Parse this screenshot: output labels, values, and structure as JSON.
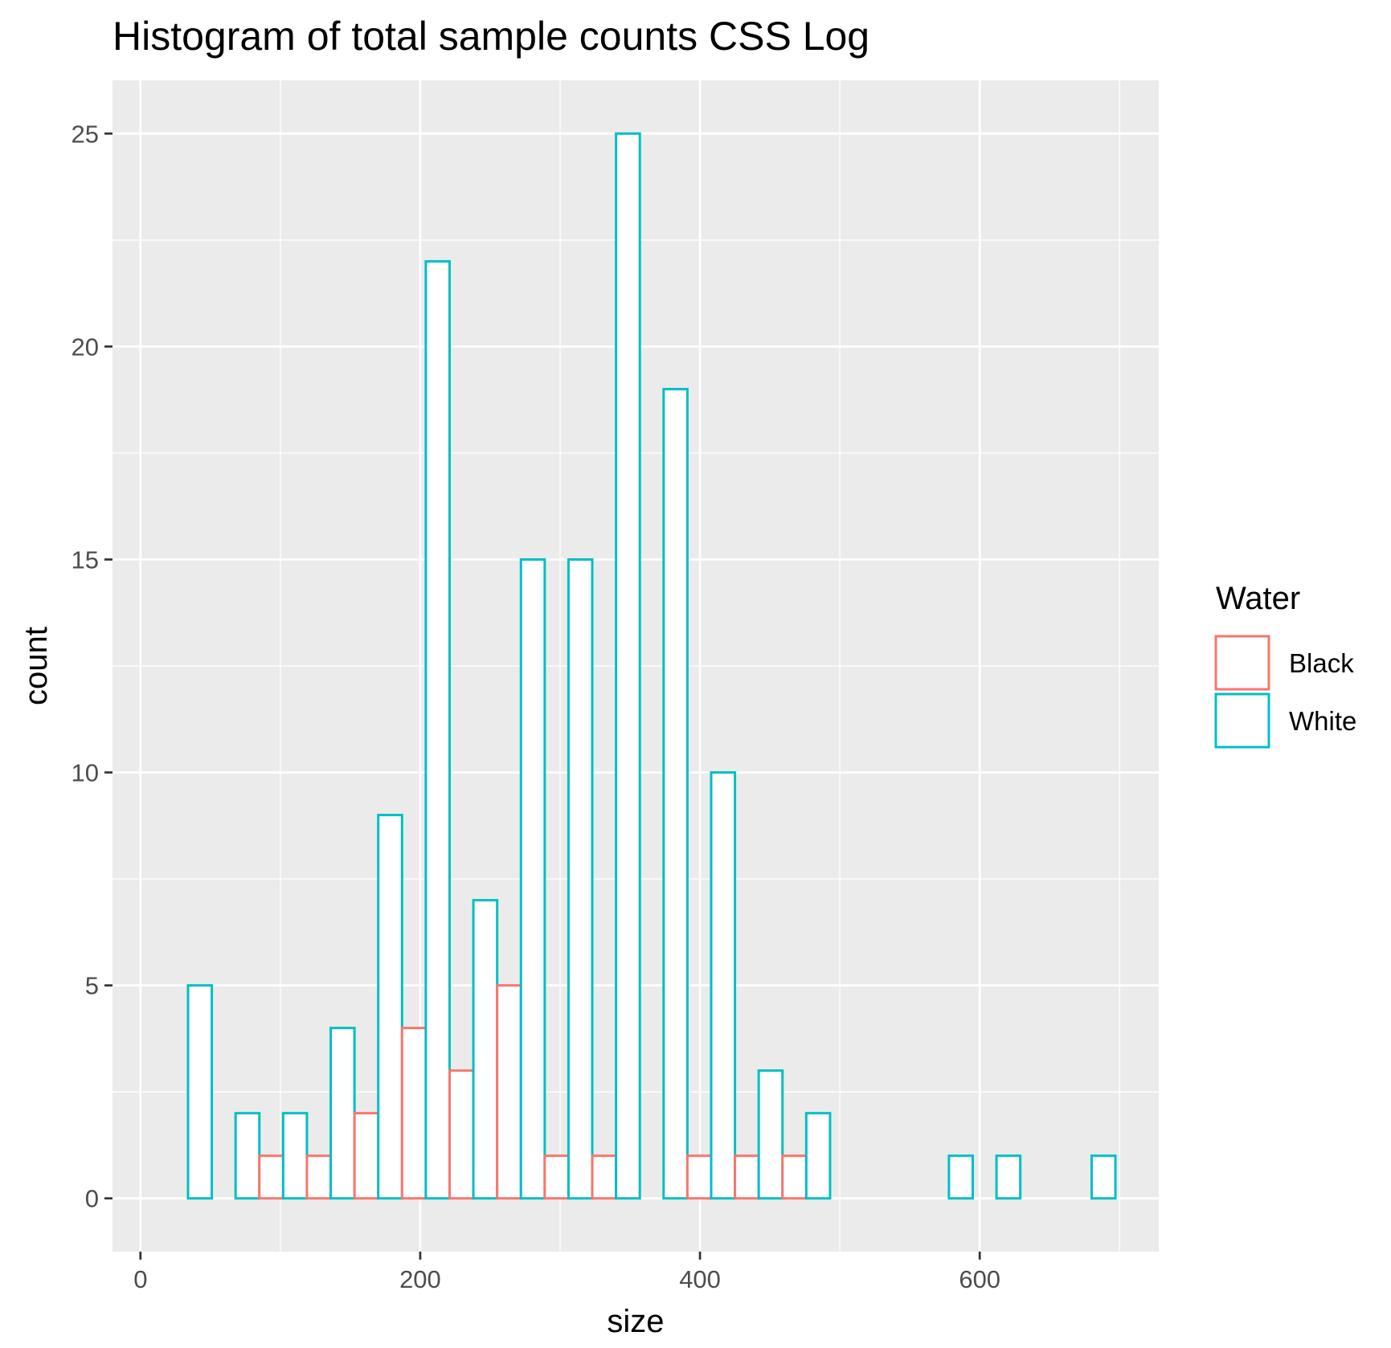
{
  "chart_data": {
    "type": "bar",
    "title": "Histogram of total sample counts CSS Log",
    "xlabel": "size",
    "ylabel": "count",
    "xlim": [
      -20,
      728
    ],
    "ylim": [
      -1.25,
      26.25
    ],
    "x_ticks": [
      0,
      200,
      400,
      600
    ],
    "x_minor_ticks": [
      100,
      300,
      500,
      700
    ],
    "y_ticks": [
      0,
      5,
      10,
      15,
      20,
      25
    ],
    "y_minor_ticks": [
      2.5,
      7.5,
      12.5,
      17.5,
      22.5
    ],
    "bin_width": 34,
    "position": "dodge",
    "grid": true,
    "legend": {
      "title": "Water",
      "placement": "right",
      "entries": [
        "Black",
        "White"
      ]
    },
    "x": [
      34,
      68,
      102,
      136,
      170,
      204,
      238,
      272,
      306,
      340,
      374,
      408,
      442,
      476,
      510,
      544,
      578,
      612,
      646,
      680
    ],
    "series": [
      {
        "name": "Black",
        "color": "#F8766D",
        "values": [
          0,
          0,
          1,
          1,
          2,
          4,
          3,
          5,
          1,
          1,
          0,
          1,
          1,
          1,
          0,
          0,
          0,
          0,
          0,
          0
        ]
      },
      {
        "name": "White",
        "color": "#00BFC4",
        "values": [
          5,
          2,
          2,
          4,
          9,
          22,
          7,
          15,
          15,
          25,
          19,
          10,
          3,
          2,
          0,
          0,
          1,
          1,
          0,
          1
        ]
      }
    ]
  }
}
